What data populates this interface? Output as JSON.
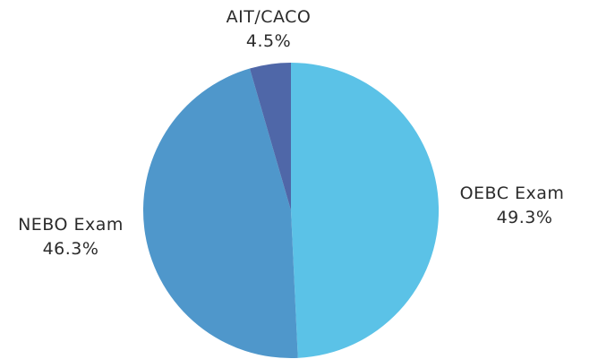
{
  "chart_data": {
    "type": "pie",
    "slices": [
      {
        "label": "OEBC Exam",
        "value": 49.3,
        "value_label": "49.3%",
        "color": "#5bc2e7"
      },
      {
        "label": "NEBO Exam",
        "value": 46.3,
        "value_label": "46.3%",
        "color": "#4f97cb"
      },
      {
        "label": "AIT/CACO",
        "value": 4.5,
        "value_label": "4.5%",
        "color": "#4f67a8"
      }
    ],
    "start_angle": "12 o'clock",
    "direction": "clockwise",
    "legend": "none"
  }
}
